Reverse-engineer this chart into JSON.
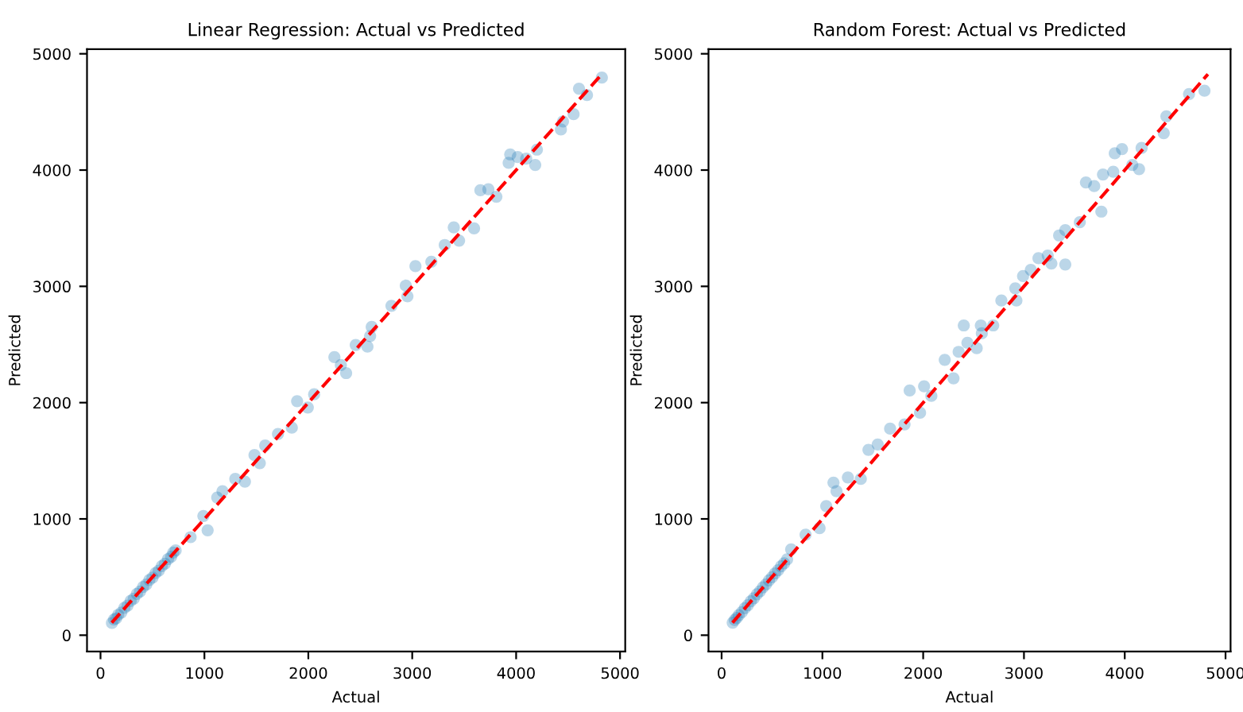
{
  "chart_data": [
    {
      "type": "scatter",
      "title": "Linear Regression: Actual vs Predicted",
      "xlabel": "Actual",
      "ylabel": "Predicted",
      "xlim": [
        -130,
        5050
      ],
      "ylim": [
        -140,
        5040
      ],
      "xticks": [
        0,
        1000,
        2000,
        3000,
        4000,
        5000
      ],
      "yticks": [
        0,
        1000,
        2000,
        3000,
        4000,
        5000
      ],
      "grid": false,
      "marker": "circle",
      "series": [
        {
          "type": "scatter",
          "color": "#1f77b4",
          "x": [
            110,
            130,
            150,
            170,
            200,
            230,
            260,
            290,
            320,
            350,
            380,
            410,
            440,
            470,
            500,
            530,
            560,
            590,
            620,
            650,
            680,
            700,
            723,
            867,
            990,
            1031,
            1123,
            1174,
            1297,
            1390,
            1482,
            1533,
            1585,
            1708,
            1841,
            1892,
            1995,
            2056,
            2251,
            2313,
            2364,
            2456,
            2569,
            2595,
            2610,
            2800,
            2938,
            2954,
            3031,
            3184,
            3313,
            3400,
            3451,
            3595,
            3656,
            3733,
            3810,
            3928,
            3943,
            4015,
            4097,
            4184,
            4200,
            4431,
            4451,
            4553,
            4605,
            4682,
            4825
          ],
          "values": [
            105,
            135,
            145,
            175,
            195,
            235,
            255,
            295,
            315,
            355,
            375,
            415,
            435,
            475,
            495,
            535,
            555,
            595,
            615,
            655,
            675,
            710,
            729,
            843,
            1025,
            902,
            1184,
            1239,
            1344,
            1321,
            1549,
            1480,
            1631,
            1731,
            1785,
            2013,
            1958,
            2072,
            2391,
            2323,
            2254,
            2496,
            2482,
            2573,
            2651,
            2833,
            3006,
            2915,
            3174,
            3211,
            3356,
            3507,
            3393,
            3498,
            3826,
            3835,
            3771,
            4062,
            4135,
            4112,
            4099,
            4044,
            4176,
            4349,
            4418,
            4481,
            4700,
            4645,
            4795
          ]
        },
        {
          "type": "line",
          "color": "#ff0000",
          "line_style": "dashed",
          "marker": "none",
          "x": [
            108,
            4825
          ],
          "values": [
            108,
            4825
          ]
        }
      ]
    },
    {
      "type": "scatter",
      "title": "Random Forest: Actual vs Predicted",
      "xlabel": "Actual",
      "ylabel": "Predicted",
      "xlim": [
        -130,
        5050
      ],
      "ylim": [
        -140,
        5040
      ],
      "xticks": [
        0,
        1000,
        2000,
        3000,
        4000,
        5000
      ],
      "yticks": [
        0,
        1000,
        2000,
        3000,
        4000,
        5000
      ],
      "grid": false,
      "marker": "circle",
      "series": [
        {
          "type": "scatter",
          "color": "#1f77b4",
          "x": [
            110,
            130,
            150,
            170,
            200,
            230,
            260,
            290,
            320,
            350,
            380,
            410,
            440,
            470,
            500,
            530,
            560,
            590,
            620,
            650,
            690,
            833,
            972,
            1038,
            1110,
            1140,
            1253,
            1381,
            1457,
            1549,
            1672,
            1815,
            1866,
            1969,
            2009,
            2081,
            2214,
            2301,
            2352,
            2403,
            2439,
            2531,
            2572,
            2582,
            2695,
            2776,
            2914,
            2925,
            2991,
            3068,
            3144,
            3236,
            3272,
            3349,
            3410,
            3410,
            3554,
            3615,
            3697,
            3768,
            3784,
            3886,
            3901,
            3973,
            4075,
            4142,
            4167,
            4387,
            4413,
            4638,
            4791
          ],
          "values": [
            108,
            132,
            148,
            172,
            198,
            232,
            258,
            292,
            318,
            352,
            378,
            412,
            438,
            472,
            498,
            532,
            558,
            592,
            618,
            652,
            738,
            865,
            920,
            1111,
            1312,
            1239,
            1357,
            1344,
            1594,
            1640,
            1776,
            1813,
            2104,
            1913,
            2141,
            2058,
            2368,
            2209,
            2437,
            2664,
            2514,
            2468,
            2664,
            2596,
            2664,
            2878,
            2983,
            2878,
            3088,
            3142,
            3242,
            3265,
            3197,
            3438,
            3484,
            3188,
            3552,
            3894,
            3862,
            3643,
            3962,
            3985,
            4144,
            4181,
            4044,
            4008,
            4190,
            4317,
            4463,
            4654,
            4682
          ]
        },
        {
          "type": "line",
          "color": "#ff0000",
          "line_style": "dashed",
          "marker": "none",
          "x": [
            108,
            4825
          ],
          "values": [
            108,
            4825
          ]
        }
      ]
    }
  ]
}
